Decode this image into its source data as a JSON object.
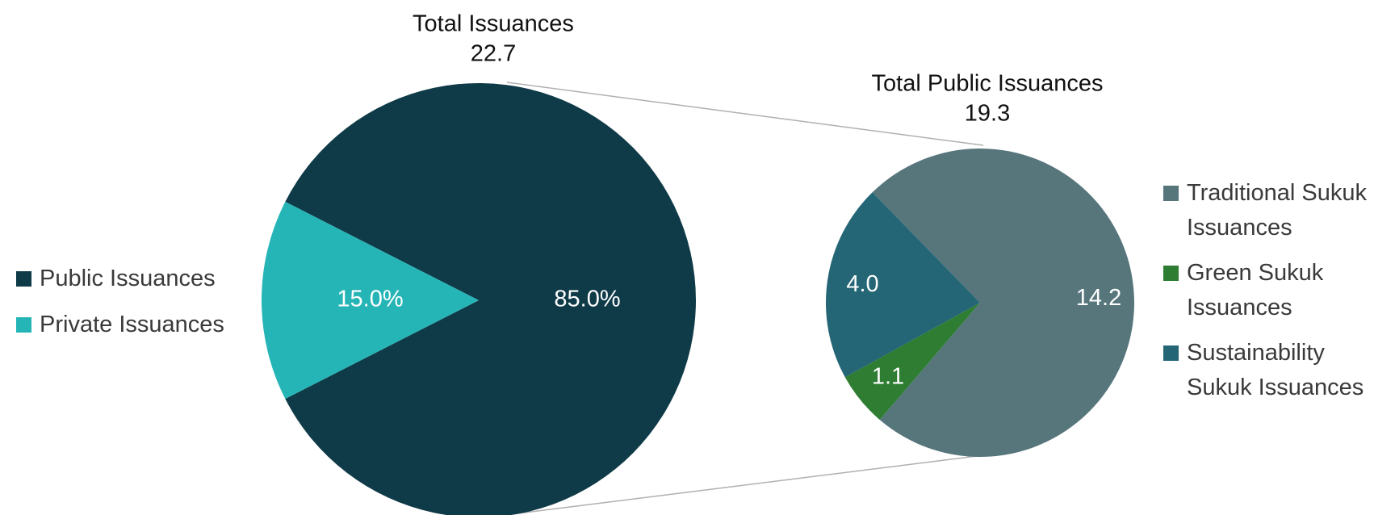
{
  "chart_data": [
    {
      "type": "pie",
      "title": "Total Issuances",
      "total": 22.7,
      "categories": [
        "Public Issuances",
        "Private Issuances"
      ],
      "values": [
        85.0,
        15.0
      ],
      "value_labels": [
        "85.0%",
        "15.0%"
      ],
      "colors": [
        "#0f3a47",
        "#26b5b7"
      ],
      "legend": "left"
    },
    {
      "type": "pie",
      "title": "Total Public Issuances",
      "total": 19.3,
      "categories": [
        "Traditional Sukuk Issuances",
        "Green Sukuk Issuances",
        "Sustainability Sukuk Issuances"
      ],
      "values": [
        14.2,
        1.1,
        4.0
      ],
      "value_labels": [
        "14.2",
        "1.1",
        "4.0"
      ],
      "colors": [
        "#56767c",
        "#2e7d32",
        "#246675"
      ],
      "legend": "right"
    }
  ]
}
